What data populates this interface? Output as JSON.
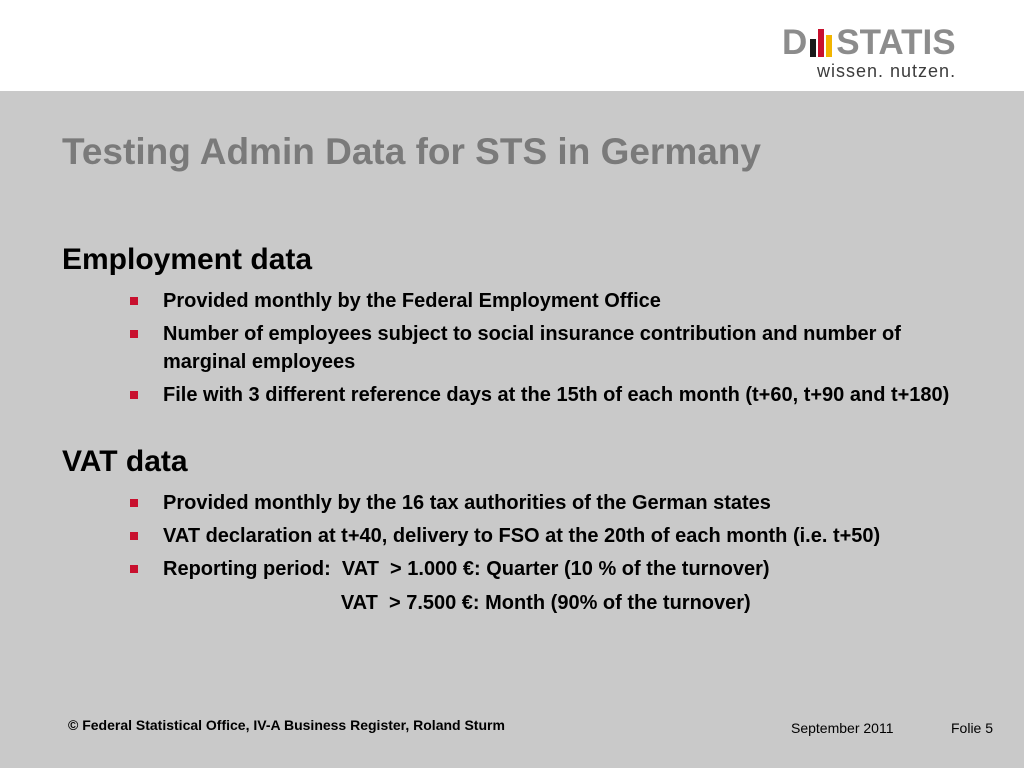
{
  "logo": {
    "word_left": "D",
    "word_right": "STATIS",
    "tagline": "wissen. nutzen.",
    "colors": {
      "bar_black": "#1a1a1a",
      "bar_red": "#c8102e",
      "bar_gold": "#f2b500",
      "word": "#8c8c8c"
    }
  },
  "title": "Testing Admin Data for STS in Germany",
  "sections": {
    "employment": {
      "heading": "Employment data",
      "bullets": [
        "Provided monthly by the Federal Employment Office",
        "Number of employees subject to social insurance contribution and number of marginal employees",
        "File with 3 different reference days at the 15th of each month (t+60, t+90 and t+180)"
      ]
    },
    "vat": {
      "heading": "VAT data",
      "bullets": [
        "Provided monthly by the 16 tax authorities of the German states",
        "VAT declaration at t+40, delivery to FSO at the 20th of each month (i.e. t+50)"
      ],
      "reporting": {
        "line1": "Reporting period:  VAT  > 1.000 €: Quarter (10 % of the turnover)",
        "line2": "                                VAT  > 7.500 €: Month (90% of the turnover)"
      }
    }
  },
  "footer": {
    "copyright": "© Federal Statistical Office, IV-A Business Register, Roland Sturm",
    "date": "September 2011",
    "page": "Folie 5"
  },
  "colors": {
    "background": "#c9c9c9",
    "title": "#7a7a7a",
    "bullet": "#c8102e"
  }
}
